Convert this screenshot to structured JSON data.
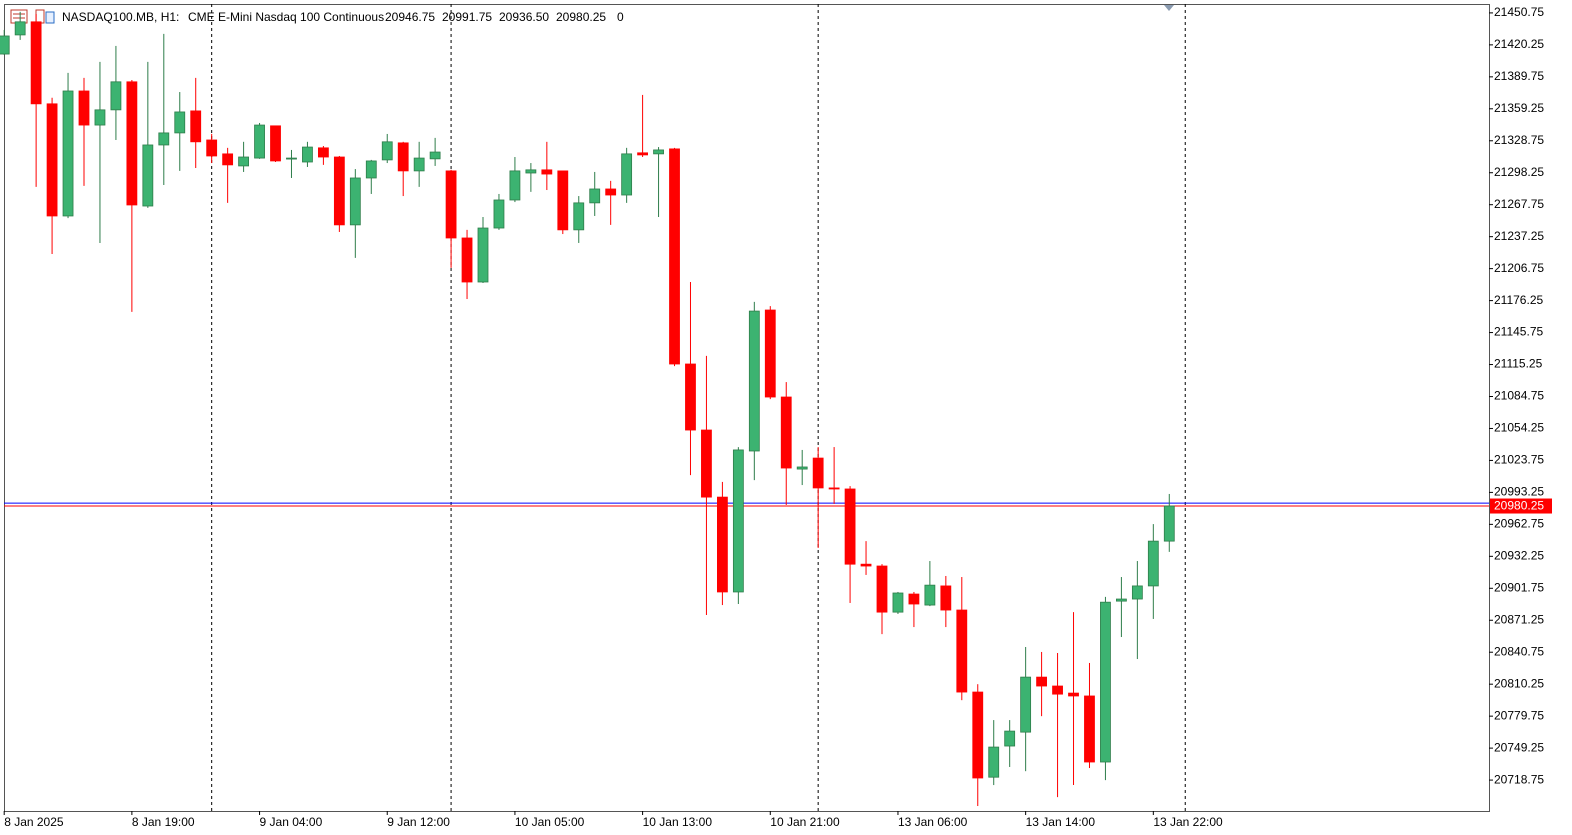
{
  "header": {
    "symbol": "NASDAQ100.MB, H1:",
    "description": "CME E-Mini Nasdaq 100 Continuous",
    "ohlc": [
      "20946.75",
      "20991.75",
      "20936.50",
      "20980.25"
    ],
    "volume": "0"
  },
  "chart_data": {
    "type": "candlestick",
    "categories": [
      "8 Jan 2025",
      null,
      null,
      null,
      null,
      null,
      null,
      null,
      "8 Jan 19:00",
      null,
      null,
      null,
      null,
      null,
      null,
      null,
      "9 Jan 04:00",
      null,
      null,
      null,
      null,
      null,
      null,
      null,
      "9 Jan 12:00",
      null,
      null,
      null,
      null,
      null,
      null,
      null,
      "10 Jan 05:00",
      null,
      null,
      null,
      null,
      null,
      null,
      null,
      "10 Jan 13:00",
      null,
      null,
      null,
      null,
      null,
      null,
      null,
      "10 Jan 21:00",
      null,
      null,
      null,
      null,
      null,
      null,
      null,
      "13 Jan 06:00",
      null,
      null,
      null,
      null,
      null,
      null,
      null,
      "13 Jan 14:00",
      null,
      null,
      null,
      null,
      null,
      null,
      null,
      "13 Jan 22:00",
      null
    ],
    "open": [
      21411.5,
      21429.75,
      21442.25,
      21364,
      21257,
      21376.25,
      21343.75,
      21358.25,
      21385,
      21266.5,
      21324.75,
      21336.25,
      21357.25,
      21329.5,
      21316.25,
      21304.75,
      21312.25,
      21343,
      21311.5,
      21308.5,
      21322,
      21313.25,
      21248.5,
      21293.25,
      21310.5,
      21326.75,
      21300,
      21311.5,
      21300,
      21236,
      21194,
      21245.5,
      21272.25,
      21298,
      21301,
      21300,
      21243.75,
      21269.5,
      21282.75,
      21277,
      21317.25,
      21316.25,
      21321,
      21115.75,
      21052.75,
      20988.75,
      20898.25,
      21032.75,
      21167.25,
      21084.25,
      21015.5,
      21026,
      20997.5,
      20996.5,
      20924.75,
      20923,
      20879,
      20896.25,
      20885.75,
      20904,
      20881,
      20802.75,
      20721.5,
      20751.25,
      20764.5,
      20817,
      20808.5,
      20801.75,
      20799,
      20736,
      20889.5,
      20891.5,
      20904,
      20946.75
    ],
    "high": [
      21434.5,
      21451.75,
      21449.75,
      21369.75,
      21393.5,
      21388.75,
      21404,
      21419.25,
      21386.75,
      21404,
      21430.75,
      21375.25,
      21388.75,
      21335.25,
      21322,
      21327.75,
      21345.75,
      21343,
      21320,
      21327.75,
      21323.75,
      21314.25,
      21301.75,
      21310.5,
      21335.25,
      21327.75,
      21327.75,
      21331.5,
      21301,
      21243.75,
      21256,
      21278,
      21313.25,
      21307.5,
      21327.75,
      21300,
      21276,
      21299,
      21290.5,
      21322,
      21372.5,
      21322.75,
      21322,
      21194,
      21123.5,
      21003.25,
      21036.5,
      21175,
      21171,
      21098.5,
      21033.75,
      21036.5,
      21036.5,
      20999.25,
      20946.75,
      20924.75,
      20898.25,
      20898.25,
      20927.75,
      20913.5,
      20912.5,
      20810.25,
      20776,
      20776,
      20845.75,
      20841,
      20840,
      20879,
      20830.5,
      20893.5,
      20912.5,
      20927.75,
      20963,
      20991.75
    ],
    "low": [
      21410.75,
      21425,
      21284.75,
      21220.75,
      21255,
      21285.75,
      21231.25,
      21329.5,
      21165.5,
      21264.75,
      21286.5,
      21300,
      21302.75,
      21307.5,
      21269.5,
      21299,
      21311.5,
      21308.5,
      21293.25,
      21303.75,
      21305.75,
      21241.75,
      21217,
      21278,
      21307.5,
      21276,
      21284.75,
      21304.75,
      21207.5,
      21177.75,
      21193,
      21243.75,
      21270.25,
      21280,
      21281.75,
      21239.75,
      21231.25,
      21257,
      21248.5,
      21269.5,
      21313.25,
      21256,
      21113.75,
      21009.75,
      20876.25,
      20885.75,
      20886.75,
      21005,
      21082.25,
      20981.25,
      21000.25,
      20940.25,
      20982.25,
      20887.75,
      20914.5,
      20858,
      20877.25,
      20864.75,
      20884.75,
      20864.75,
      20795,
      20694,
      20714,
      20731.25,
      20727.25,
      20779.75,
      20702.5,
      20714,
      20730.25,
      20718.75,
      20855.25,
      20834.25,
      20872.5,
      20936.5
    ],
    "close": [
      21428.75,
      21442.25,
      21364,
      21257,
      21376.25,
      21343.75,
      21358.25,
      21385,
      21267.5,
      21324.75,
      21336.25,
      21356.25,
      21327.75,
      21314.25,
      21305.75,
      21313.25,
      21343.75,
      21309.5,
      21312.25,
      21322.75,
      21313.25,
      21248.5,
      21293.25,
      21309.5,
      21327.75,
      21300,
      21312.25,
      21318,
      21236,
      21194,
      21245.5,
      21272.25,
      21300,
      21301,
      21297,
      21243.75,
      21269.5,
      21282.75,
      21277,
      21316.25,
      21315.25,
      21320,
      21115.75,
      21052.75,
      20988.75,
      20898.25,
      21033.75,
      21166.25,
      21084.25,
      21016.5,
      21017.5,
      20997.5,
      20996.5,
      20924.75,
      20923,
      20879,
      20897.25,
      20886.75,
      20904.75,
      20881,
      20802.75,
      20720.75,
      20750.25,
      20765.5,
      20817,
      20808.5,
      20800.75,
      20799,
      20736,
      20888.5,
      20891.5,
      20904,
      20946.75,
      20980.25
    ],
    "up_color": "#3cb371",
    "down_color": "#ff0000",
    "ylim": [
      20689.25,
      21459.25
    ],
    "yticks": [
      21450.75,
      21420.25,
      21389.75,
      21359.25,
      21328.75,
      21298.25,
      21267.75,
      21237.25,
      21206.75,
      21176.25,
      21145.75,
      21115.25,
      21084.75,
      21054.25,
      21023.75,
      20993.25,
      20962.75,
      20932.25,
      20901.75,
      20871.25,
      20840.75,
      20810.25,
      20779.75,
      20749.25,
      20718.75
    ],
    "grid": false,
    "bid_line": {
      "value": 20980.25,
      "color": "#ff0000"
    },
    "ask_line": {
      "value": 20983,
      "color": "#0000ff"
    }
  }
}
